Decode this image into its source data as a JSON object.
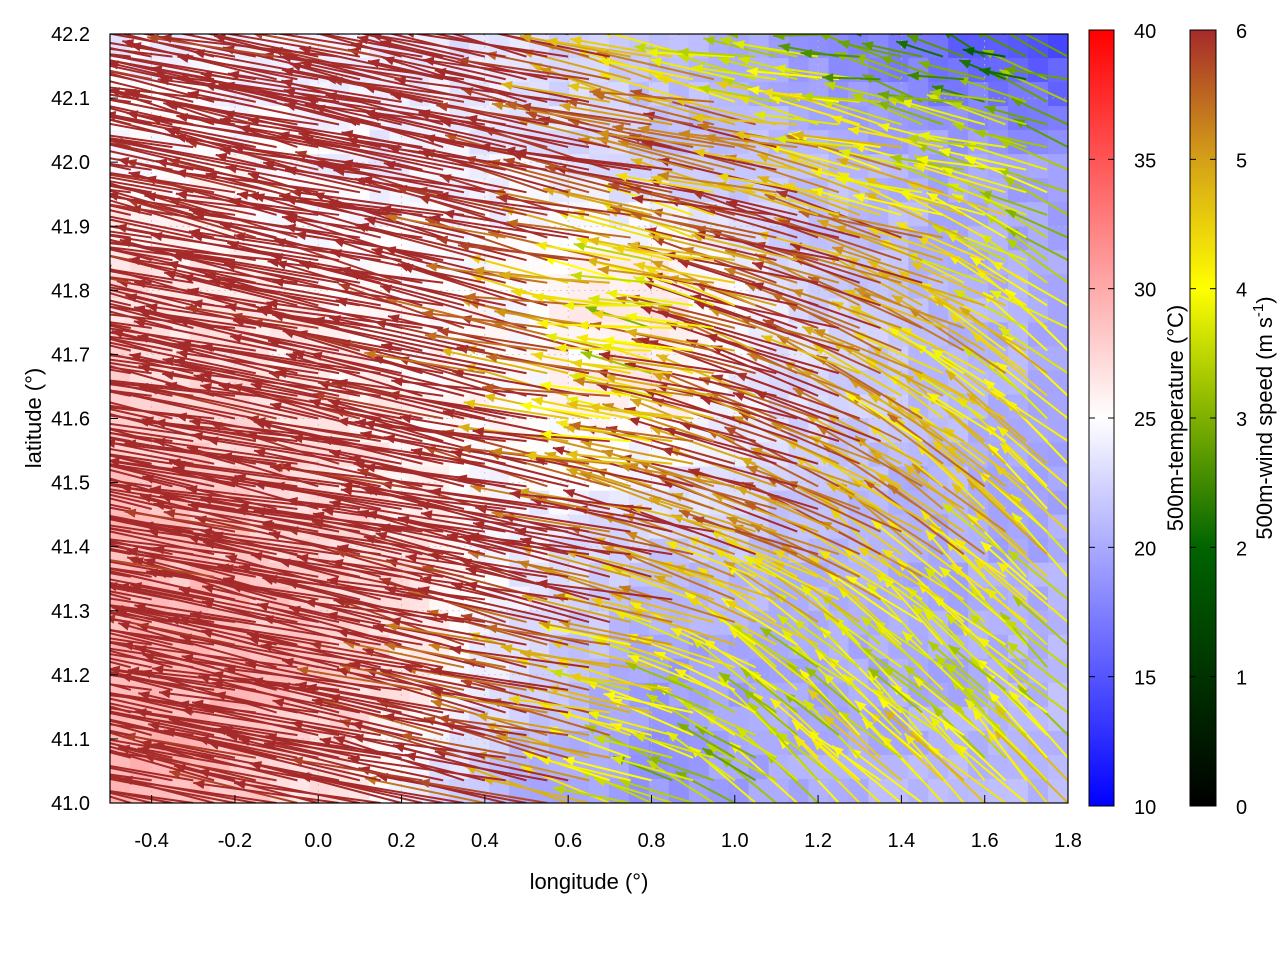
{
  "chart_data": {
    "type": "heatmap",
    "description_overlay": "vector field",
    "xlabel": "longitude (°)",
    "ylabel": "latitude (°)",
    "xlim": [
      -0.5,
      1.8
    ],
    "ylim": [
      41.0,
      42.2
    ],
    "xticks": [
      "-0.4",
      "-0.2",
      "0.0",
      "0.2",
      "0.4",
      "0.6",
      "0.8",
      "1.0",
      "1.2",
      "1.4",
      "1.6",
      "1.8"
    ],
    "xtick_values": [
      -0.4,
      -0.2,
      0.0,
      0.2,
      0.4,
      0.6,
      0.8,
      1.0,
      1.2,
      1.4,
      1.6,
      1.8
    ],
    "yticks": [
      "41.0",
      "41.1",
      "41.2",
      "41.3",
      "41.4",
      "41.5",
      "41.6",
      "41.7",
      "41.8",
      "41.9",
      "42.0",
      "42.1",
      "42.2"
    ],
    "ytick_values": [
      41.0,
      41.1,
      41.2,
      41.3,
      41.4,
      41.5,
      41.6,
      41.7,
      41.8,
      41.9,
      42.0,
      42.1,
      42.2
    ],
    "grid": true,
    "colorbar_temperature": {
      "label": "500m-temperature (°C)",
      "range": [
        10,
        40
      ],
      "ticks": [
        "10",
        "15",
        "20",
        "25",
        "30",
        "35",
        "40"
      ],
      "tick_values": [
        10,
        15,
        20,
        25,
        30,
        35,
        40
      ],
      "colors": [
        "#0000ff",
        "#ffffff",
        "#ff0000"
      ]
    },
    "colorbar_wind": {
      "label_main": "500m-wind speed (m s",
      "label_sup": "-1",
      "label_end": ")",
      "range": [
        0,
        6
      ],
      "ticks": [
        "0",
        "1",
        "2",
        "3",
        "4",
        "5",
        "6"
      ],
      "tick_values": [
        0,
        1,
        2,
        3,
        4,
        5,
        6
      ],
      "stops": [
        [
          0,
          "#000000"
        ],
        [
          2,
          "#006400"
        ],
        [
          3,
          "#7fb000"
        ],
        [
          4,
          "#ffff00"
        ],
        [
          5,
          "#d4a017"
        ],
        [
          6,
          "#a52a2a"
        ]
      ]
    },
    "grid_lon": [
      -0.5,
      -0.17,
      0.16,
      0.49,
      0.81,
      1.14,
      1.47,
      1.8
    ],
    "grid_lat": [
      42.2,
      42.0,
      41.8,
      41.6,
      41.4,
      41.2,
      41.0
    ],
    "temperature": [
      [
        24,
        24,
        24,
        23,
        21,
        19,
        16,
        14
      ],
      [
        25,
        25,
        24,
        24,
        22,
        21,
        20,
        19
      ],
      [
        27,
        26,
        25,
        25,
        27,
        23,
        21,
        20
      ],
      [
        28,
        27,
        26,
        25,
        26,
        23,
        21,
        20
      ],
      [
        29,
        28,
        27,
        24,
        22,
        21,
        20,
        20
      ],
      [
        29,
        29,
        27,
        23,
        19,
        20,
        20,
        21
      ],
      [
        30,
        28,
        25,
        20,
        19,
        20,
        21,
        21
      ]
    ],
    "wind_u": [
      [
        -7,
        -7,
        -7,
        -7,
        -4,
        -3,
        -2,
        -2
      ],
      [
        -7,
        -7,
        -7,
        -7,
        -6,
        -5,
        -4,
        -3
      ],
      [
        -7,
        -7,
        -7,
        -6,
        -3,
        -6,
        -5,
        -3
      ],
      [
        -7,
        -7,
        -7,
        -6.5,
        -4,
        -6,
        -4,
        -3
      ],
      [
        -7,
        -7,
        -7,
        -7,
        -6,
        -5,
        -4,
        -3
      ],
      [
        -7,
        -7,
        -7,
        -6,
        -4,
        -3,
        -2.5,
        -2.5
      ],
      [
        -7,
        -7,
        -7,
        -6,
        -3,
        -2.5,
        -3,
        -3
      ]
    ],
    "wind_v": [
      [
        1.5,
        1.5,
        1.5,
        1.5,
        1,
        0.5,
        0.5,
        1
      ],
      [
        1.5,
        1.5,
        1.5,
        1.5,
        1.5,
        1,
        1,
        1
      ],
      [
        1.5,
        1.5,
        1.5,
        1.5,
        0.5,
        2,
        2,
        2
      ],
      [
        1.5,
        1.5,
        1.5,
        1.5,
        0.5,
        2,
        2.5,
        3
      ],
      [
        1.5,
        1.5,
        1.5,
        1.5,
        1.5,
        2,
        3,
        3
      ],
      [
        1.5,
        1.5,
        1.5,
        1.5,
        1,
        2.5,
        2.5,
        2.5
      ],
      [
        1.5,
        1.5,
        1.5,
        1.5,
        1,
        2.5,
        3,
        3
      ]
    ]
  }
}
